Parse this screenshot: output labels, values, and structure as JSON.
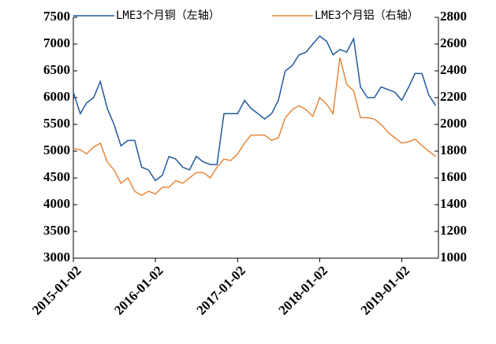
{
  "chart_data": {
    "type": "line",
    "x": [
      "2015-01-02",
      "2015-02-02",
      "2015-03-02",
      "2015-04-02",
      "2015-05-02",
      "2015-06-02",
      "2015-07-02",
      "2015-08-02",
      "2015-09-02",
      "2015-10-02",
      "2015-11-02",
      "2015-12-02",
      "2016-01-02",
      "2016-02-02",
      "2016-03-02",
      "2016-04-02",
      "2016-05-02",
      "2016-06-02",
      "2016-07-02",
      "2016-08-02",
      "2016-09-02",
      "2016-10-02",
      "2016-11-02",
      "2016-12-02",
      "2017-01-02",
      "2017-02-02",
      "2017-03-02",
      "2017-04-02",
      "2017-05-02",
      "2017-06-02",
      "2017-07-02",
      "2017-08-02",
      "2017-09-02",
      "2017-10-02",
      "2017-11-02",
      "2017-12-02",
      "2018-01-02",
      "2018-02-02",
      "2018-03-02",
      "2018-04-02",
      "2018-05-02",
      "2018-06-02",
      "2018-07-02",
      "2018-08-02",
      "2018-09-02",
      "2018-10-02",
      "2018-11-02",
      "2018-12-02",
      "2019-01-02",
      "2019-02-02",
      "2019-03-02",
      "2019-04-02",
      "2019-05-02",
      "2019-06-02"
    ],
    "series": [
      {
        "name": "LME3个月铜（左轴）",
        "color": "#1f5a9e",
        "axis": "y",
        "values": [
          6100,
          5700,
          5900,
          6000,
          6300,
          5800,
          5500,
          5100,
          5200,
          5200,
          4700,
          4650,
          4450,
          4550,
          4900,
          4850,
          4700,
          4650,
          4900,
          4800,
          4750,
          4750,
          5700,
          5700,
          5700,
          5950,
          5800,
          5700,
          5600,
          5700,
          5950,
          6500,
          6600,
          6800,
          6850,
          7000,
          7150,
          7050,
          6800,
          6900,
          6850,
          7100,
          6200,
          6000,
          6000,
          6200,
          6150,
          6100,
          5950,
          6200,
          6450,
          6450,
          6050,
          5850
        ]
      },
      {
        "name": "LME3个月铝（右轴）",
        "color": "#e8873a",
        "axis": "y2",
        "values": [
          1820,
          1810,
          1780,
          1830,
          1860,
          1720,
          1660,
          1560,
          1600,
          1500,
          1470,
          1500,
          1480,
          1530,
          1530,
          1580,
          1560,
          1600,
          1640,
          1640,
          1600,
          1680,
          1740,
          1730,
          1780,
          1860,
          1920,
          1920,
          1920,
          1880,
          1900,
          2050,
          2110,
          2140,
          2110,
          2060,
          2200,
          2150,
          2080,
          2500,
          2300,
          2250,
          2050,
          2050,
          2040,
          2000,
          1940,
          1900,
          1860,
          1870,
          1890,
          1840,
          1800,
          1760
        ]
      }
    ],
    "xlim": [
      "2015-01-02",
      "2019-06-14"
    ],
    "xticks": [
      "2015-01-02",
      "2016-01-02",
      "2017-01-02",
      "2018-01-02",
      "2019-01-02"
    ],
    "ylim": [
      3000,
      7500
    ],
    "yticks": [
      3000,
      3500,
      4000,
      4500,
      5000,
      5500,
      6000,
      6500,
      7000,
      7500
    ],
    "y2lim": [
      1000,
      2800
    ],
    "y2ticks": [
      1000,
      1200,
      1400,
      1600,
      1800,
      2000,
      2200,
      2400,
      2600,
      2800
    ],
    "legend": "top"
  }
}
